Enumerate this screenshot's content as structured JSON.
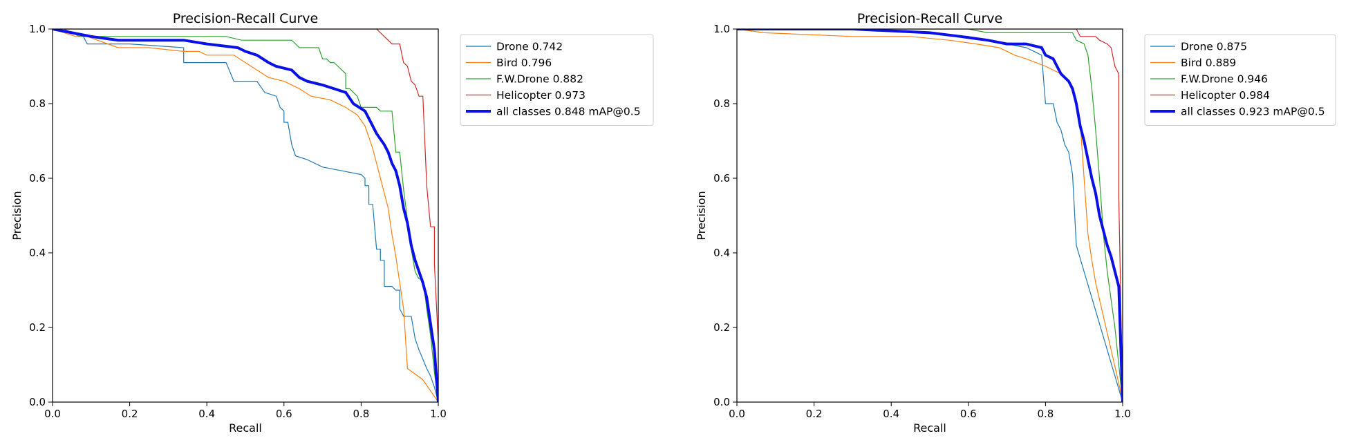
{
  "chart_data": [
    {
      "type": "line",
      "title": "Precision-Recall Curve",
      "xlabel": "Recall",
      "ylabel": "Precision",
      "xlim": [
        0,
        1
      ],
      "ylim": [
        0,
        1
      ],
      "xticks": [
        "0.0",
        "0.2",
        "0.4",
        "0.6",
        "0.8",
        "1.0"
      ],
      "yticks": [
        "0.0",
        "0.2",
        "0.4",
        "0.6",
        "0.8",
        "1.0"
      ],
      "grid": false,
      "legend_position": "outside-top-right",
      "series": [
        {
          "name": "Drone 0.742",
          "color": "#1f77b4",
          "width": 1.2,
          "points": [
            [
              0,
              1.0
            ],
            [
              0.03,
              1.0
            ],
            [
              0.05,
              0.99
            ],
            [
              0.08,
              0.98
            ],
            [
              0.09,
              0.96
            ],
            [
              0.2,
              0.96
            ],
            [
              0.34,
              0.95
            ],
            [
              0.34,
              0.91
            ],
            [
              0.45,
              0.91
            ],
            [
              0.47,
              0.86
            ],
            [
              0.53,
              0.86
            ],
            [
              0.55,
              0.83
            ],
            [
              0.58,
              0.82
            ],
            [
              0.59,
              0.79
            ],
            [
              0.6,
              0.78
            ],
            [
              0.6,
              0.75
            ],
            [
              0.61,
              0.75
            ],
            [
              0.62,
              0.69
            ],
            [
              0.63,
              0.66
            ],
            [
              0.66,
              0.65
            ],
            [
              0.7,
              0.63
            ],
            [
              0.75,
              0.62
            ],
            [
              0.8,
              0.61
            ],
            [
              0.81,
              0.6
            ],
            [
              0.81,
              0.58
            ],
            [
              0.82,
              0.58
            ],
            [
              0.82,
              0.53
            ],
            [
              0.83,
              0.53
            ],
            [
              0.84,
              0.41
            ],
            [
              0.85,
              0.41
            ],
            [
              0.85,
              0.38
            ],
            [
              0.86,
              0.38
            ],
            [
              0.86,
              0.31
            ],
            [
              0.88,
              0.31
            ],
            [
              0.89,
              0.3
            ],
            [
              0.9,
              0.3
            ],
            [
              0.9,
              0.25
            ],
            [
              0.91,
              0.23
            ],
            [
              0.93,
              0.23
            ],
            [
              0.94,
              0.17
            ],
            [
              0.95,
              0.14
            ],
            [
              0.97,
              0.09
            ],
            [
              0.98,
              0.07
            ],
            [
              0.99,
              0.04
            ],
            [
              1.0,
              0.0
            ]
          ]
        },
        {
          "name": "Bird 0.796",
          "color": "#ff7f0e",
          "width": 1.2,
          "points": [
            [
              0,
              1.0
            ],
            [
              0.03,
              0.99
            ],
            [
              0.06,
              0.98
            ],
            [
              0.09,
              0.98
            ],
            [
              0.17,
              0.95
            ],
            [
              0.25,
              0.95
            ],
            [
              0.34,
              0.94
            ],
            [
              0.38,
              0.94
            ],
            [
              0.4,
              0.93
            ],
            [
              0.47,
              0.93
            ],
            [
              0.5,
              0.91
            ],
            [
              0.53,
              0.89
            ],
            [
              0.56,
              0.87
            ],
            [
              0.6,
              0.86
            ],
            [
              0.64,
              0.84
            ],
            [
              0.67,
              0.82
            ],
            [
              0.72,
              0.81
            ],
            [
              0.76,
              0.79
            ],
            [
              0.79,
              0.77
            ],
            [
              0.81,
              0.74
            ],
            [
              0.82,
              0.71
            ],
            [
              0.83,
              0.68
            ],
            [
              0.84,
              0.64
            ],
            [
              0.85,
              0.6
            ],
            [
              0.86,
              0.56
            ],
            [
              0.87,
              0.52
            ],
            [
              0.88,
              0.45
            ],
            [
              0.89,
              0.39
            ],
            [
              0.9,
              0.32
            ],
            [
              0.91,
              0.25
            ],
            [
              0.92,
              0.09
            ],
            [
              0.96,
              0.06
            ],
            [
              1.0,
              0.0
            ]
          ]
        },
        {
          "name": "F.W.Drone 0.882",
          "color": "#2ca02c",
          "width": 1.2,
          "points": [
            [
              0,
              1.0
            ],
            [
              0.05,
              0.99
            ],
            [
              0.07,
              0.98
            ],
            [
              0.15,
              0.98
            ],
            [
              0.45,
              0.98
            ],
            [
              0.49,
              0.97
            ],
            [
              0.62,
              0.97
            ],
            [
              0.64,
              0.95
            ],
            [
              0.69,
              0.95
            ],
            [
              0.7,
              0.92
            ],
            [
              0.71,
              0.92
            ],
            [
              0.72,
              0.91
            ],
            [
              0.73,
              0.91
            ],
            [
              0.74,
              0.9
            ],
            [
              0.75,
              0.89
            ],
            [
              0.76,
              0.88
            ],
            [
              0.76,
              0.84
            ],
            [
              0.77,
              0.84
            ],
            [
              0.78,
              0.83
            ],
            [
              0.79,
              0.82
            ],
            [
              0.8,
              0.79
            ],
            [
              0.84,
              0.79
            ],
            [
              0.85,
              0.78
            ],
            [
              0.88,
              0.78
            ],
            [
              0.89,
              0.67
            ],
            [
              0.9,
              0.67
            ],
            [
              0.91,
              0.57
            ],
            [
              0.92,
              0.49
            ],
            [
              0.93,
              0.41
            ],
            [
              0.94,
              0.35
            ],
            [
              0.95,
              0.33
            ],
            [
              0.96,
              0.33
            ],
            [
              0.97,
              0.25
            ],
            [
              0.98,
              0.18
            ],
            [
              0.99,
              0.08
            ],
            [
              1.0,
              0.0
            ]
          ]
        },
        {
          "name": "Helicopter 0.973",
          "color": "#d62728",
          "width": 1.2,
          "points": [
            [
              0,
              1.0
            ],
            [
              0.84,
              1.0
            ],
            [
              0.88,
              0.96
            ],
            [
              0.9,
              0.96
            ],
            [
              0.91,
              0.91
            ],
            [
              0.92,
              0.9
            ],
            [
              0.93,
              0.86
            ],
            [
              0.94,
              0.85
            ],
            [
              0.95,
              0.82
            ],
            [
              0.96,
              0.82
            ],
            [
              0.97,
              0.58
            ],
            [
              0.98,
              0.47
            ],
            [
              0.99,
              0.47
            ],
            [
              0.99,
              0.37
            ],
            [
              1.0,
              0.16
            ],
            [
              1.0,
              0.0
            ]
          ]
        },
        {
          "name": "all classes 0.848 mAP@0.5",
          "color": "#0a10e8",
          "width": 4,
          "points": [
            [
              0,
              1.0
            ],
            [
              0.05,
              0.99
            ],
            [
              0.1,
              0.98
            ],
            [
              0.17,
              0.97
            ],
            [
              0.34,
              0.97
            ],
            [
              0.4,
              0.96
            ],
            [
              0.48,
              0.95
            ],
            [
              0.5,
              0.94
            ],
            [
              0.53,
              0.93
            ],
            [
              0.56,
              0.91
            ],
            [
              0.58,
              0.9
            ],
            [
              0.62,
              0.89
            ],
            [
              0.64,
              0.87
            ],
            [
              0.66,
              0.86
            ],
            [
              0.7,
              0.85
            ],
            [
              0.73,
              0.84
            ],
            [
              0.76,
              0.83
            ],
            [
              0.78,
              0.8
            ],
            [
              0.81,
              0.78
            ],
            [
              0.82,
              0.76
            ],
            [
              0.84,
              0.72
            ],
            [
              0.86,
              0.69
            ],
            [
              0.87,
              0.67
            ],
            [
              0.88,
              0.64
            ],
            [
              0.89,
              0.62
            ],
            [
              0.9,
              0.58
            ],
            [
              0.91,
              0.52
            ],
            [
              0.92,
              0.48
            ],
            [
              0.93,
              0.42
            ],
            [
              0.94,
              0.38
            ],
            [
              0.95,
              0.35
            ],
            [
              0.96,
              0.32
            ],
            [
              0.97,
              0.28
            ],
            [
              0.98,
              0.21
            ],
            [
              0.99,
              0.14
            ],
            [
              1.0,
              0.0
            ]
          ]
        }
      ]
    },
    {
      "type": "line",
      "title": "Precision-Recall Curve",
      "xlabel": "Recall",
      "ylabel": "Precision",
      "xlim": [
        0,
        1
      ],
      "ylim": [
        0,
        1
      ],
      "xticks": [
        "0.0",
        "0.2",
        "0.4",
        "0.6",
        "0.8",
        "1.0"
      ],
      "yticks": [
        "0.0",
        "0.2",
        "0.4",
        "0.6",
        "0.8",
        "1.0"
      ],
      "grid": false,
      "legend_position": "outside-top-right",
      "series": [
        {
          "name": "Drone 0.875",
          "color": "#1f77b4",
          "width": 1.2,
          "points": [
            [
              0,
              1.0
            ],
            [
              0.3,
              1.0
            ],
            [
              0.5,
              0.99
            ],
            [
              0.6,
              0.98
            ],
            [
              0.65,
              0.97
            ],
            [
              0.7,
              0.96
            ],
            [
              0.75,
              0.95
            ],
            [
              0.79,
              0.93
            ],
            [
              0.8,
              0.8
            ],
            [
              0.82,
              0.8
            ],
            [
              0.83,
              0.75
            ],
            [
              0.84,
              0.73
            ],
            [
              0.85,
              0.69
            ],
            [
              0.86,
              0.67
            ],
            [
              0.87,
              0.61
            ],
            [
              0.88,
              0.42
            ],
            [
              1.0,
              0.0
            ]
          ]
        },
        {
          "name": "Bird 0.889",
          "color": "#ff7f0e",
          "width": 1.2,
          "points": [
            [
              0,
              1.0
            ],
            [
              0.07,
              0.99
            ],
            [
              0.3,
              0.98
            ],
            [
              0.45,
              0.98
            ],
            [
              0.55,
              0.97
            ],
            [
              0.62,
              0.96
            ],
            [
              0.68,
              0.95
            ],
            [
              0.72,
              0.93
            ],
            [
              0.75,
              0.92
            ],
            [
              0.8,
              0.9
            ],
            [
              0.84,
              0.88
            ],
            [
              0.86,
              0.86
            ],
            [
              0.87,
              0.83
            ],
            [
              0.88,
              0.8
            ],
            [
              0.89,
              0.75
            ],
            [
              0.9,
              0.6
            ],
            [
              0.91,
              0.45
            ],
            [
              0.92,
              0.38
            ],
            [
              0.93,
              0.32
            ],
            [
              0.95,
              0.23
            ],
            [
              0.97,
              0.14
            ],
            [
              0.99,
              0.05
            ],
            [
              1.0,
              0.0
            ]
          ]
        },
        {
          "name": "F.W.Drone 0.946",
          "color": "#2ca02c",
          "width": 1.2,
          "points": [
            [
              0,
              1.0
            ],
            [
              0.6,
              1.0
            ],
            [
              0.65,
              0.99
            ],
            [
              0.87,
              0.99
            ],
            [
              0.88,
              0.97
            ],
            [
              0.9,
              0.96
            ],
            [
              0.91,
              0.93
            ],
            [
              0.92,
              0.84
            ],
            [
              0.93,
              0.73
            ],
            [
              0.94,
              0.6
            ],
            [
              0.95,
              0.45
            ],
            [
              0.96,
              0.35
            ],
            [
              0.98,
              0.2
            ],
            [
              1.0,
              0.0
            ]
          ]
        },
        {
          "name": "Helicopter 0.984",
          "color": "#d62728",
          "width": 1.2,
          "points": [
            [
              0,
              1.0
            ],
            [
              0.88,
              1.0
            ],
            [
              0.89,
              0.98
            ],
            [
              0.93,
              0.98
            ],
            [
              0.94,
              0.97
            ],
            [
              0.96,
              0.96
            ],
            [
              0.97,
              0.95
            ],
            [
              0.98,
              0.9
            ],
            [
              0.99,
              0.88
            ],
            [
              0.99,
              0.55
            ],
            [
              1.0,
              0.0
            ]
          ]
        },
        {
          "name": "all classes 0.923 mAP@0.5",
          "color": "#0a10e8",
          "width": 4,
          "points": [
            [
              0,
              1.0
            ],
            [
              0.3,
              1.0
            ],
            [
              0.5,
              0.99
            ],
            [
              0.58,
              0.98
            ],
            [
              0.65,
              0.97
            ],
            [
              0.7,
              0.96
            ],
            [
              0.75,
              0.96
            ],
            [
              0.79,
              0.95
            ],
            [
              0.8,
              0.93
            ],
            [
              0.82,
              0.92
            ],
            [
              0.83,
              0.9
            ],
            [
              0.84,
              0.88
            ],
            [
              0.86,
              0.86
            ],
            [
              0.87,
              0.84
            ],
            [
              0.88,
              0.8
            ],
            [
              0.89,
              0.74
            ],
            [
              0.9,
              0.7
            ],
            [
              0.91,
              0.65
            ],
            [
              0.92,
              0.6
            ],
            [
              0.93,
              0.56
            ],
            [
              0.94,
              0.5
            ],
            [
              0.95,
              0.46
            ],
            [
              0.96,
              0.42
            ],
            [
              0.97,
              0.39
            ],
            [
              0.98,
              0.35
            ],
            [
              0.99,
              0.31
            ],
            [
              1.0,
              0.0
            ]
          ]
        }
      ]
    }
  ]
}
